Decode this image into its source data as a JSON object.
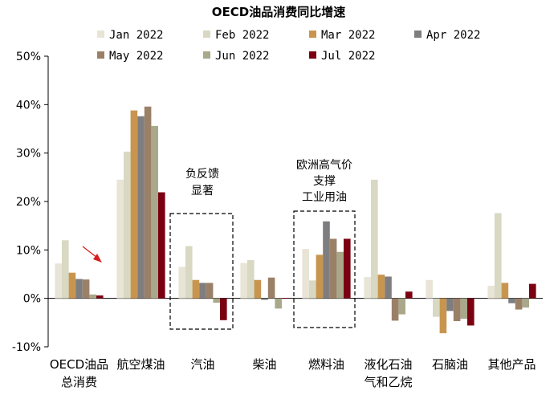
{
  "chart_data": {
    "type": "bar",
    "title": "OECD油品消费同比增速",
    "categories": [
      [
        "OECD油品",
        "总消费"
      ],
      [
        "航空煤油"
      ],
      [
        "汽油"
      ],
      [
        "柴油"
      ],
      [
        "燃料油"
      ],
      [
        "液化石油",
        "气和乙烷"
      ],
      [
        "石脑油"
      ],
      [
        "其他产品"
      ]
    ],
    "yticks": [
      "50%",
      "40%",
      "30%",
      "20%",
      "10%",
      "0%",
      "-10%"
    ],
    "ylim": [
      -10,
      50
    ],
    "unit": "%",
    "grid": false,
    "legend_position": "top",
    "series": [
      {
        "name": "Jan 2022",
        "color": "#e8e4d6",
        "values": [
          7.2,
          24.5,
          6.5,
          7.3,
          10.2,
          4.4,
          3.8,
          2.6
        ]
      },
      {
        "name": "Feb 2022",
        "color": "#d9d8c3",
        "values": [
          12.0,
          30.3,
          10.8,
          7.9,
          3.7,
          24.5,
          -3.8,
          17.6
        ]
      },
      {
        "name": "Mar 2022",
        "color": "#c8954f",
        "values": [
          5.3,
          38.8,
          3.8,
          3.8,
          9.0,
          4.9,
          -7.2,
          3.2
        ]
      },
      {
        "name": "Apr 2022",
        "color": "#7e7e80",
        "values": [
          4.0,
          37.6,
          3.2,
          -0.3,
          15.9,
          4.5,
          -2.6,
          -1.0
        ]
      },
      {
        "name": "May 2022",
        "color": "#9b8068",
        "values": [
          3.9,
          39.6,
          3.2,
          4.3,
          12.3,
          -4.6,
          -4.7,
          -2.3
        ]
      },
      {
        "name": "Jun 2022",
        "color": "#a9a88a",
        "values": [
          0.8,
          35.6,
          -0.9,
          -2.1,
          9.6,
          -3.3,
          -4.2,
          -1.9
        ]
      },
      {
        "name": "Jul 2022",
        "color": "#7a0012",
        "values": [
          0.6,
          21.9,
          -4.5,
          0.1,
          12.3,
          1.4,
          -5.6,
          3.0
        ]
      }
    ],
    "annotations": [
      {
        "lines": [
          "负反馈",
          "显著"
        ]
      },
      {
        "lines": [
          "欧洲高气价",
          "支撑",
          "工业用油"
        ]
      }
    ]
  }
}
